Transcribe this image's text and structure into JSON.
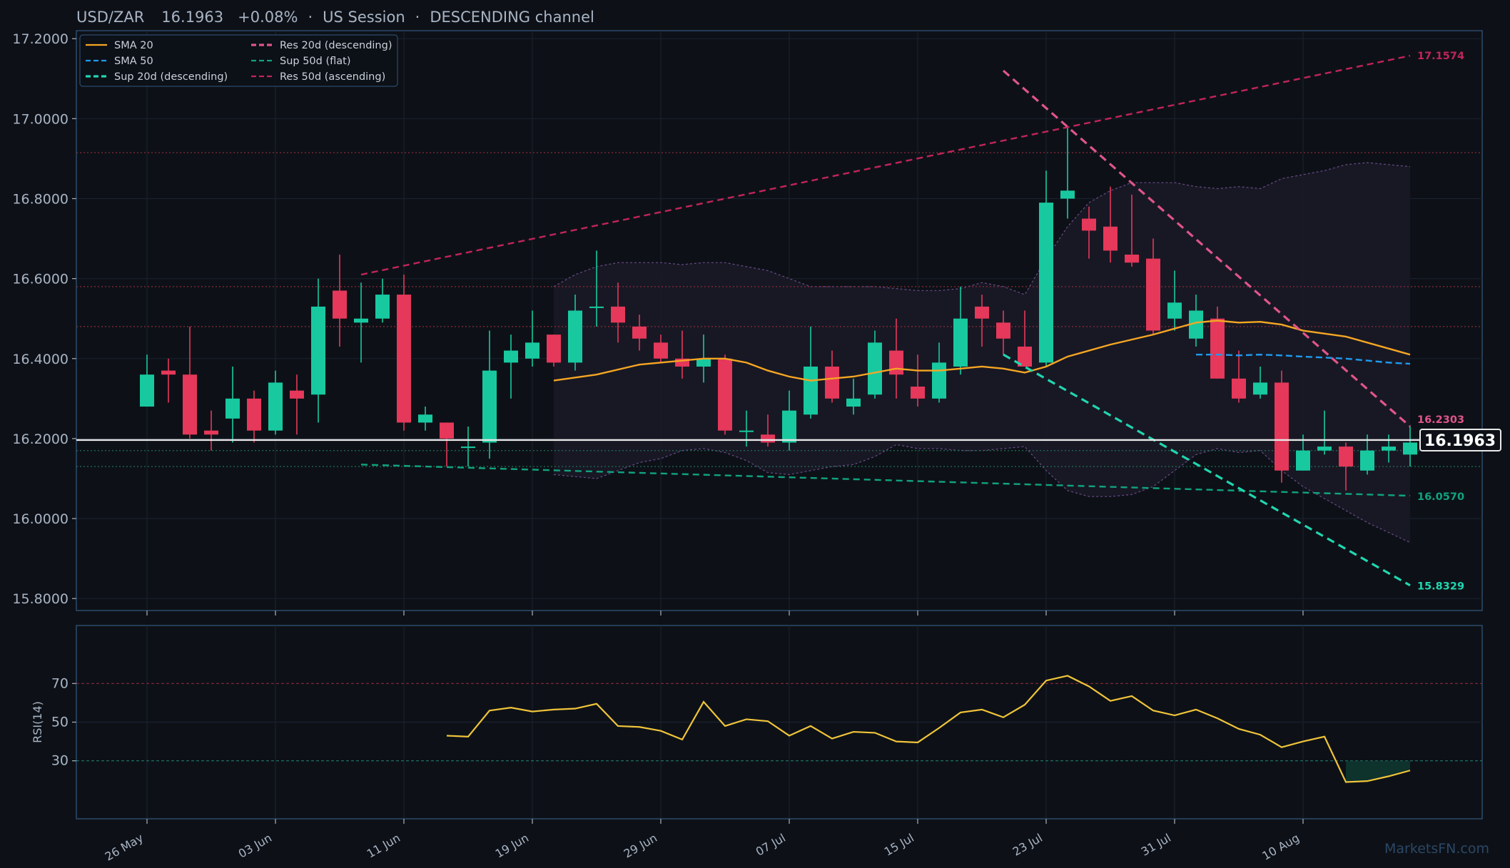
{
  "header": {
    "pair": "USD/ZAR",
    "price": "16.1963",
    "change": "+0.08%",
    "session": "US Session",
    "channel": "DESCENDING channel",
    "separator": "·"
  },
  "colors": {
    "background": "#0d1117",
    "panel_border": "#2d4a6b",
    "up_candle": "#18c9a0",
    "down_candle": "#e5385a",
    "sma20": "#f5a623",
    "sma50": "#1e9bf0",
    "res_desc": "#e0558a",
    "res_asc": "#c2245a",
    "sup_desc": "#21d6b0",
    "sup_flat": "#10a37f",
    "rsi": "#f0c43a",
    "price_line": "#e8e8e8"
  },
  "legend": [
    {
      "label": "SMA 20",
      "color": "#f5a623",
      "dash": "solid"
    },
    {
      "label": "SMA 50",
      "color": "#1e9bf0",
      "dash": "dashed"
    },
    {
      "label": "Sup 20d (descending)",
      "color": "#21d6b0",
      "dash": "dashed-bold"
    },
    {
      "label": "Res 20d (descending)",
      "color": "#e0558a",
      "dash": "dashed-bold"
    },
    {
      "label": "Sup 50d (flat)",
      "color": "#10a37f",
      "dash": "dashed"
    },
    {
      "label": "Res 50d (ascending)",
      "color": "#c2245a",
      "dash": "dashed"
    }
  ],
  "level_labels": {
    "res_asc_end": "17.1574",
    "res_desc_end": "16.2303",
    "price_tag": "16.1963",
    "sup_flat_end": "16.0570",
    "sup_desc_end": "15.8329"
  },
  "rsi_panel": {
    "ylabel": "RSI(14)",
    "ticks": [
      "70",
      "50",
      "30"
    ]
  },
  "watermark": "MarketsFN.com",
  "chart_data": {
    "type": "candlestick",
    "title": "USD/ZAR 16.1963 +0.08% · US Session · DESCENDING channel",
    "ylim": [
      15.77,
      17.22
    ],
    "yticks": [
      "15.8000",
      "16.0000",
      "16.2000",
      "16.4000",
      "16.6000",
      "16.8000",
      "17.0000",
      "17.2000"
    ],
    "x_tick_labels": [
      {
        "index": 0,
        "label": "26 May"
      },
      {
        "index": 6,
        "label": "03 Jun"
      },
      {
        "index": 12,
        "label": "11 Jun"
      },
      {
        "index": 18,
        "label": "19 Jun"
      },
      {
        "index": 24,
        "label": "29 Jun"
      },
      {
        "index": 30,
        "label": "07 Jul"
      },
      {
        "index": 36,
        "label": "15 Jul"
      },
      {
        "index": 42,
        "label": "23 Jul"
      },
      {
        "index": 48,
        "label": "31 Jul"
      },
      {
        "index": 54,
        "label": "10 Aug"
      }
    ],
    "candles": [
      {
        "o": 16.28,
        "h": 16.41,
        "l": 16.28,
        "c": 16.36
      },
      {
        "o": 16.37,
        "h": 16.4,
        "l": 16.29,
        "c": 16.36
      },
      {
        "o": 16.36,
        "h": 16.48,
        "l": 16.2,
        "c": 16.21
      },
      {
        "o": 16.22,
        "h": 16.27,
        "l": 16.17,
        "c": 16.21
      },
      {
        "o": 16.25,
        "h": 16.38,
        "l": 16.19,
        "c": 16.3
      },
      {
        "o": 16.3,
        "h": 16.32,
        "l": 16.19,
        "c": 16.22
      },
      {
        "o": 16.22,
        "h": 16.37,
        "l": 16.21,
        "c": 16.34
      },
      {
        "o": 16.32,
        "h": 16.36,
        "l": 16.21,
        "c": 16.3
      },
      {
        "o": 16.31,
        "h": 16.6,
        "l": 16.24,
        "c": 16.53
      },
      {
        "o": 16.57,
        "h": 16.66,
        "l": 16.43,
        "c": 16.5
      },
      {
        "o": 16.49,
        "h": 16.59,
        "l": 16.39,
        "c": 16.5
      },
      {
        "o": 16.5,
        "h": 16.6,
        "l": 16.49,
        "c": 16.56
      },
      {
        "o": 16.56,
        "h": 16.61,
        "l": 16.22,
        "c": 16.24
      },
      {
        "o": 16.24,
        "h": 16.28,
        "l": 16.22,
        "c": 16.26
      },
      {
        "o": 16.24,
        "h": 16.24,
        "l": 16.13,
        "c": 16.2
      },
      {
        "o": 16.18,
        "h": 16.23,
        "l": 16.13,
        "c": 16.18
      },
      {
        "o": 16.19,
        "h": 16.47,
        "l": 16.15,
        "c": 16.37
      },
      {
        "o": 16.39,
        "h": 16.46,
        "l": 16.3,
        "c": 16.42
      },
      {
        "o": 16.4,
        "h": 16.52,
        "l": 16.38,
        "c": 16.44
      },
      {
        "o": 16.46,
        "h": 16.46,
        "l": 16.38,
        "c": 16.39
      },
      {
        "o": 16.39,
        "h": 16.56,
        "l": 16.37,
        "c": 16.52
      },
      {
        "o": 16.53,
        "h": 16.67,
        "l": 16.48,
        "c": 16.53
      },
      {
        "o": 16.53,
        "h": 16.59,
        "l": 16.44,
        "c": 16.49
      },
      {
        "o": 16.48,
        "h": 16.51,
        "l": 16.42,
        "c": 16.45
      },
      {
        "o": 16.44,
        "h": 16.46,
        "l": 16.39,
        "c": 16.4
      },
      {
        "o": 16.4,
        "h": 16.47,
        "l": 16.35,
        "c": 16.38
      },
      {
        "o": 16.38,
        "h": 16.46,
        "l": 16.34,
        "c": 16.4
      },
      {
        "o": 16.4,
        "h": 16.41,
        "l": 16.21,
        "c": 16.22
      },
      {
        "o": 16.22,
        "h": 16.27,
        "l": 16.18,
        "c": 16.22
      },
      {
        "o": 16.21,
        "h": 16.26,
        "l": 16.18,
        "c": 16.19
      },
      {
        "o": 16.19,
        "h": 16.32,
        "l": 16.17,
        "c": 16.27
      },
      {
        "o": 16.26,
        "h": 16.48,
        "l": 16.25,
        "c": 16.38
      },
      {
        "o": 16.38,
        "h": 16.42,
        "l": 16.29,
        "c": 16.3
      },
      {
        "o": 16.28,
        "h": 16.35,
        "l": 16.26,
        "c": 16.3
      },
      {
        "o": 16.31,
        "h": 16.47,
        "l": 16.3,
        "c": 16.44
      },
      {
        "o": 16.42,
        "h": 16.5,
        "l": 16.3,
        "c": 16.36
      },
      {
        "o": 16.33,
        "h": 16.41,
        "l": 16.28,
        "c": 16.3
      },
      {
        "o": 16.3,
        "h": 16.44,
        "l": 16.29,
        "c": 16.39
      },
      {
        "o": 16.38,
        "h": 16.58,
        "l": 16.36,
        "c": 16.5
      },
      {
        "o": 16.53,
        "h": 16.56,
        "l": 16.43,
        "c": 16.5
      },
      {
        "o": 16.49,
        "h": 16.52,
        "l": 16.41,
        "c": 16.45
      },
      {
        "o": 16.43,
        "h": 16.52,
        "l": 16.38,
        "c": 16.38
      },
      {
        "o": 16.39,
        "h": 16.87,
        "l": 16.38,
        "c": 16.79
      },
      {
        "o": 16.8,
        "h": 16.98,
        "l": 16.75,
        "c": 16.82
      },
      {
        "o": 16.75,
        "h": 16.78,
        "l": 16.65,
        "c": 16.72
      },
      {
        "o": 16.73,
        "h": 16.83,
        "l": 16.64,
        "c": 16.67
      },
      {
        "o": 16.66,
        "h": 16.81,
        "l": 16.63,
        "c": 16.64
      },
      {
        "o": 16.65,
        "h": 16.7,
        "l": 16.46,
        "c": 16.47
      },
      {
        "o": 16.5,
        "h": 16.62,
        "l": 16.47,
        "c": 16.54
      },
      {
        "o": 16.45,
        "h": 16.56,
        "l": 16.43,
        "c": 16.52
      },
      {
        "o": 16.5,
        "h": 16.53,
        "l": 16.35,
        "c": 16.35
      },
      {
        "o": 16.35,
        "h": 16.42,
        "l": 16.29,
        "c": 16.3
      },
      {
        "o": 16.31,
        "h": 16.38,
        "l": 16.3,
        "c": 16.34
      },
      {
        "o": 16.34,
        "h": 16.37,
        "l": 16.09,
        "c": 16.12
      },
      {
        "o": 16.12,
        "h": 16.21,
        "l": 16.12,
        "c": 16.17
      },
      {
        "o": 16.17,
        "h": 16.27,
        "l": 16.16,
        "c": 16.18
      },
      {
        "o": 16.18,
        "h": 16.19,
        "l": 16.07,
        "c": 16.13
      },
      {
        "o": 16.12,
        "h": 16.21,
        "l": 16.11,
        "c": 16.17
      },
      {
        "o": 16.17,
        "h": 16.21,
        "l": 16.14,
        "c": 16.18
      },
      {
        "o": 16.16,
        "h": 16.23,
        "l": 16.13,
        "c": 16.19
      }
    ],
    "sma20": [
      {
        "i": 19,
        "v": 16.345
      },
      {
        "i": 21,
        "v": 16.36
      },
      {
        "i": 23,
        "v": 16.385
      },
      {
        "i": 25,
        "v": 16.395
      },
      {
        "i": 26,
        "v": 16.4
      },
      {
        "i": 27,
        "v": 16.4
      },
      {
        "i": 28,
        "v": 16.39
      },
      {
        "i": 29,
        "v": 16.37
      },
      {
        "i": 30,
        "v": 16.355
      },
      {
        "i": 31,
        "v": 16.345
      },
      {
        "i": 33,
        "v": 16.355
      },
      {
        "i": 35,
        "v": 16.375
      },
      {
        "i": 36,
        "v": 16.37
      },
      {
        "i": 37,
        "v": 16.37
      },
      {
        "i": 38,
        "v": 16.375
      },
      {
        "i": 39,
        "v": 16.38
      },
      {
        "i": 40,
        "v": 16.375
      },
      {
        "i": 41,
        "v": 16.365
      },
      {
        "i": 42,
        "v": 16.38
      },
      {
        "i": 43,
        "v": 16.405
      },
      {
        "i": 45,
        "v": 16.435
      },
      {
        "i": 47,
        "v": 16.46
      },
      {
        "i": 48,
        "v": 16.475
      },
      {
        "i": 49,
        "v": 16.49
      },
      {
        "i": 50,
        "v": 16.495
      },
      {
        "i": 51,
        "v": 16.49
      },
      {
        "i": 52,
        "v": 16.492
      },
      {
        "i": 53,
        "v": 16.485
      },
      {
        "i": 54,
        "v": 16.47
      },
      {
        "i": 56,
        "v": 16.455
      },
      {
        "i": 57,
        "v": 16.44
      },
      {
        "i": 59,
        "v": 16.41
      }
    ],
    "sma50": [
      {
        "i": 49,
        "v": 16.41
      },
      {
        "i": 50,
        "v": 16.41
      },
      {
        "i": 51,
        "v": 16.408
      },
      {
        "i": 52,
        "v": 16.41
      },
      {
        "i": 53,
        "v": 16.408
      },
      {
        "i": 54,
        "v": 16.405
      },
      {
        "i": 56,
        "v": 16.4
      },
      {
        "i": 58,
        "v": 16.39
      },
      {
        "i": 59,
        "v": 16.387
      }
    ],
    "bollinger_upper": [
      {
        "i": 19,
        "v": 16.58
      },
      {
        "i": 20,
        "v": 16.61
      },
      {
        "i": 21,
        "v": 16.63
      },
      {
        "i": 22,
        "v": 16.64
      },
      {
        "i": 23,
        "v": 16.64
      },
      {
        "i": 24,
        "v": 16.64
      },
      {
        "i": 25,
        "v": 16.635
      },
      {
        "i": 26,
        "v": 16.64
      },
      {
        "i": 27,
        "v": 16.64
      },
      {
        "i": 28,
        "v": 16.63
      },
      {
        "i": 29,
        "v": 16.62
      },
      {
        "i": 30,
        "v": 16.6
      },
      {
        "i": 31,
        "v": 16.58
      },
      {
        "i": 32,
        "v": 16.58
      },
      {
        "i": 33,
        "v": 16.58
      },
      {
        "i": 34,
        "v": 16.58
      },
      {
        "i": 35,
        "v": 16.575
      },
      {
        "i": 36,
        "v": 16.57
      },
      {
        "i": 37,
        "v": 16.57
      },
      {
        "i": 38,
        "v": 16.575
      },
      {
        "i": 39,
        "v": 16.59
      },
      {
        "i": 40,
        "v": 16.58
      },
      {
        "i": 41,
        "v": 16.56
      },
      {
        "i": 42,
        "v": 16.65
      },
      {
        "i": 43,
        "v": 16.73
      },
      {
        "i": 44,
        "v": 16.79
      },
      {
        "i": 45,
        "v": 16.82
      },
      {
        "i": 46,
        "v": 16.84
      },
      {
        "i": 47,
        "v": 16.84
      },
      {
        "i": 48,
        "v": 16.84
      },
      {
        "i": 49,
        "v": 16.83
      },
      {
        "i": 50,
        "v": 16.825
      },
      {
        "i": 51,
        "v": 16.83
      },
      {
        "i": 52,
        "v": 16.825
      },
      {
        "i": 53,
        "v": 16.85
      },
      {
        "i": 54,
        "v": 16.86
      },
      {
        "i": 55,
        "v": 16.87
      },
      {
        "i": 56,
        "v": 16.885
      },
      {
        "i": 57,
        "v": 16.89
      },
      {
        "i": 58,
        "v": 16.885
      },
      {
        "i": 59,
        "v": 16.88
      }
    ],
    "bollinger_lower": [
      {
        "i": 19,
        "v": 16.11
      },
      {
        "i": 20,
        "v": 16.105
      },
      {
        "i": 21,
        "v": 16.1
      },
      {
        "i": 22,
        "v": 16.12
      },
      {
        "i": 23,
        "v": 16.14
      },
      {
        "i": 24,
        "v": 16.15
      },
      {
        "i": 25,
        "v": 16.17
      },
      {
        "i": 26,
        "v": 16.175
      },
      {
        "i": 27,
        "v": 16.165
      },
      {
        "i": 28,
        "v": 16.145
      },
      {
        "i": 29,
        "v": 16.115
      },
      {
        "i": 30,
        "v": 16.11
      },
      {
        "i": 31,
        "v": 16.12
      },
      {
        "i": 32,
        "v": 16.13
      },
      {
        "i": 33,
        "v": 16.135
      },
      {
        "i": 34,
        "v": 16.155
      },
      {
        "i": 35,
        "v": 16.185
      },
      {
        "i": 36,
        "v": 16.175
      },
      {
        "i": 37,
        "v": 16.175
      },
      {
        "i": 38,
        "v": 16.17
      },
      {
        "i": 39,
        "v": 16.17
      },
      {
        "i": 40,
        "v": 16.175
      },
      {
        "i": 41,
        "v": 16.18
      },
      {
        "i": 42,
        "v": 16.12
      },
      {
        "i": 43,
        "v": 16.07
      },
      {
        "i": 44,
        "v": 16.055
      },
      {
        "i": 45,
        "v": 16.055
      },
      {
        "i": 46,
        "v": 16.06
      },
      {
        "i": 47,
        "v": 16.08
      },
      {
        "i": 48,
        "v": 16.12
      },
      {
        "i": 49,
        "v": 16.16
      },
      {
        "i": 50,
        "v": 16.175
      },
      {
        "i": 51,
        "v": 16.165
      },
      {
        "i": 52,
        "v": 16.17
      },
      {
        "i": 53,
        "v": 16.12
      },
      {
        "i": 54,
        "v": 16.08
      },
      {
        "i": 55,
        "v": 16.05
      },
      {
        "i": 56,
        "v": 16.02
      },
      {
        "i": 57,
        "v": 15.99
      },
      {
        "i": 58,
        "v": 15.965
      },
      {
        "i": 59,
        "v": 15.94
      }
    ],
    "trendlines": [
      {
        "name": "Res 50d (ascending)",
        "from": {
          "i": 10,
          "v": 16.61
        },
        "to": {
          "i": 59,
          "v": 17.1574
        }
      },
      {
        "name": "Res 20d (descending)",
        "from": {
          "i": 40,
          "v": 17.12
        },
        "to": {
          "i": 59,
          "v": 16.2303
        }
      },
      {
        "name": "Sup 50d (flat)",
        "from": {
          "i": 10,
          "v": 16.135
        },
        "to": {
          "i": 59,
          "v": 16.057
        }
      },
      {
        "name": "Sup 20d (descending)",
        "from": {
          "i": 40,
          "v": 16.41
        },
        "to": {
          "i": 59,
          "v": 15.8329
        }
      }
    ],
    "horizontal_levels": [
      16.915,
      16.58,
      16.48,
      16.17,
      16.13
    ],
    "last_price": 16.1963,
    "rsi": {
      "ylim": [
        0,
        100
      ],
      "overbought": 70,
      "oversold": 30,
      "points": [
        {
          "i": 14,
          "v": 43
        },
        {
          "i": 15,
          "v": 42.5
        },
        {
          "i": 16,
          "v": 56
        },
        {
          "i": 17,
          "v": 57.5
        },
        {
          "i": 18,
          "v": 55.5
        },
        {
          "i": 19,
          "v": 56.5
        },
        {
          "i": 20,
          "v": 57
        },
        {
          "i": 21,
          "v": 59.5
        },
        {
          "i": 22,
          "v": 48
        },
        {
          "i": 23,
          "v": 47.5
        },
        {
          "i": 24,
          "v": 45.5
        },
        {
          "i": 25,
          "v": 41
        },
        {
          "i": 26,
          "v": 60.5
        },
        {
          "i": 27,
          "v": 48
        },
        {
          "i": 28,
          "v": 51.5
        },
        {
          "i": 29,
          "v": 50.5
        },
        {
          "i": 30,
          "v": 43
        },
        {
          "i": 31,
          "v": 48
        },
        {
          "i": 32,
          "v": 41.5
        },
        {
          "i": 33,
          "v": 45
        },
        {
          "i": 34,
          "v": 44.5
        },
        {
          "i": 35,
          "v": 40
        },
        {
          "i": 36,
          "v": 39.5
        },
        {
          "i": 37,
          "v": 47
        },
        {
          "i": 38,
          "v": 55
        },
        {
          "i": 39,
          "v": 56.5
        },
        {
          "i": 40,
          "v": 52.5
        },
        {
          "i": 41,
          "v": 59
        },
        {
          "i": 42,
          "v": 71.5
        },
        {
          "i": 43,
          "v": 74
        },
        {
          "i": 44,
          "v": 68.5
        },
        {
          "i": 45,
          "v": 61
        },
        {
          "i": 46,
          "v": 63.5
        },
        {
          "i": 47,
          "v": 56
        },
        {
          "i": 48,
          "v": 53.5
        },
        {
          "i": 49,
          "v": 56.5
        },
        {
          "i": 50,
          "v": 52
        },
        {
          "i": 51,
          "v": 46.5
        },
        {
          "i": 52,
          "v": 43.5
        },
        {
          "i": 53,
          "v": 37
        },
        {
          "i": 54,
          "v": 40
        },
        {
          "i": 55,
          "v": 42.5
        },
        {
          "i": 56,
          "v": 19
        },
        {
          "i": 57,
          "v": 19.5
        },
        {
          "i": 58,
          "v": 22
        },
        {
          "i": 59,
          "v": 25
        }
      ]
    }
  }
}
